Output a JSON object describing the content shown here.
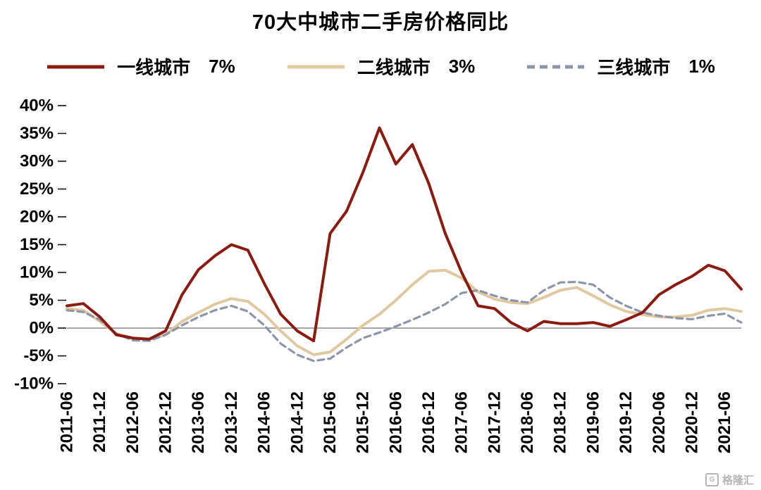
{
  "title": "70大中城市二手房价格同比",
  "watermark": {
    "logo_letter": "G",
    "text": "格隆汇"
  },
  "chart_data": {
    "type": "line",
    "title": "70大中城市二手房价格同比",
    "xlabel": "",
    "ylabel": "",
    "ylim": [
      -10,
      40
    ],
    "yticks": [
      40,
      35,
      30,
      25,
      20,
      15,
      10,
      5,
      0,
      -5,
      -10
    ],
    "ytick_suffix": "%",
    "grid": false,
    "legend_position": "top",
    "zero_line_color": "#a6a6a6",
    "x": [
      "2011-06",
      "2011-09",
      "2011-12",
      "2012-03",
      "2012-06",
      "2012-09",
      "2012-12",
      "2013-03",
      "2013-06",
      "2013-09",
      "2013-12",
      "2014-03",
      "2014-06",
      "2014-09",
      "2014-12",
      "2015-03",
      "2015-06",
      "2015-09",
      "2015-12",
      "2016-03",
      "2016-06",
      "2016-09",
      "2016-12",
      "2017-03",
      "2017-06",
      "2017-09",
      "2017-12",
      "2018-03",
      "2018-06",
      "2018-09",
      "2018-12",
      "2019-03",
      "2019-06",
      "2019-09",
      "2019-12",
      "2020-03",
      "2020-06",
      "2020-09",
      "2020-12",
      "2021-03",
      "2021-06",
      "2021-09"
    ],
    "x_tick_labels": [
      "2011-06",
      "2011-12",
      "2012-06",
      "2012-12",
      "2013-06",
      "2013-12",
      "2014-06",
      "2014-12",
      "2015-06",
      "2015-12",
      "2016-06",
      "2016-12",
      "2017-06",
      "2017-12",
      "2018-06",
      "2018-12",
      "2019-06",
      "2019-12",
      "2020-06",
      "2020-12",
      "2021-06"
    ],
    "series": [
      {
        "name": "一线城市",
        "latest_label": "7%",
        "color": "#8b1a10",
        "style": "solid",
        "width": 4,
        "values": [
          4.0,
          4.4,
          2.0,
          -1.2,
          -1.8,
          -2.0,
          -0.5,
          6.0,
          10.5,
          13.0,
          15.0,
          14.0,
          8.0,
          2.5,
          -0.5,
          -2.3,
          17.0,
          21.0,
          28.0,
          36.0,
          29.5,
          33.0,
          26.0,
          17.0,
          10.0,
          4.0,
          3.5,
          1.0,
          -0.5,
          1.2,
          0.8,
          0.8,
          1.0,
          0.3,
          1.5,
          2.8,
          6.0,
          7.8,
          9.3,
          11.3,
          10.3,
          7.0
        ]
      },
      {
        "name": "二线城市",
        "latest_label": "3%",
        "color": "#e0c8a0",
        "style": "solid",
        "width": 4,
        "values": [
          3.5,
          3.2,
          1.2,
          -1.0,
          -1.8,
          -2.0,
          -1.2,
          1.2,
          2.8,
          4.3,
          5.3,
          4.8,
          2.5,
          -0.5,
          -3.2,
          -4.8,
          -4.3,
          -2.0,
          0.5,
          2.5,
          5.0,
          7.8,
          10.2,
          10.4,
          9.0,
          6.5,
          5.2,
          4.6,
          4.4,
          5.5,
          6.8,
          7.3,
          5.8,
          4.2,
          3.0,
          2.4,
          2.0,
          2.0,
          2.3,
          3.2,
          3.5,
          3.0
        ]
      },
      {
        "name": "三线城市",
        "latest_label": "1%",
        "color": "#8c96a8",
        "style": "dashed",
        "width": 3.2,
        "values": [
          3.2,
          2.9,
          1.5,
          -1.0,
          -2.2,
          -2.3,
          -1.2,
          0.5,
          2.0,
          3.2,
          4.0,
          3.0,
          0.5,
          -2.8,
          -4.8,
          -5.9,
          -5.5,
          -3.5,
          -1.8,
          -0.8,
          0.3,
          1.5,
          2.8,
          4.3,
          6.3,
          6.8,
          5.8,
          5.0,
          4.6,
          6.8,
          8.2,
          8.3,
          7.8,
          5.5,
          4.0,
          2.8,
          2.2,
          1.8,
          1.6,
          2.2,
          2.6,
          1.0
        ]
      }
    ]
  }
}
